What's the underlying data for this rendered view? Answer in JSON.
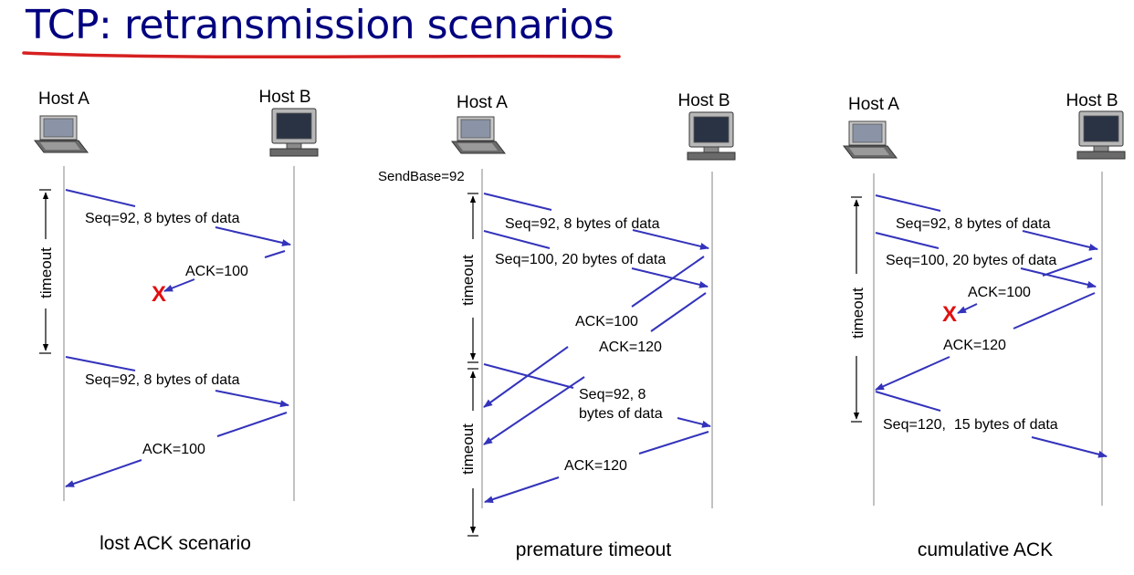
{
  "title": "TCP: retransmission scenarios",
  "colors": {
    "title": "#000080",
    "underline": "#d62020",
    "arrow": "#3333bb",
    "loss": "#e01010",
    "timeline": "#999999"
  },
  "scenarios": [
    {
      "caption": "lost ACK scenario",
      "host_a": "Host A",
      "host_b": "Host B",
      "timers": [
        "timeout"
      ],
      "messages": [
        "Seq=92, 8 bytes of data",
        "ACK=100",
        "Seq=92, 8 bytes of data",
        "ACK=100"
      ],
      "loss_marks": [
        "X"
      ]
    },
    {
      "caption": "premature timeout",
      "host_a": "Host A",
      "host_b": "Host B",
      "sendbase": "SendBase=92",
      "timers": [
        "timeout",
        "timeout"
      ],
      "messages": [
        "Seq=92, 8 bytes of data",
        "Seq=100, 20 bytes of data",
        "ACK=100",
        "ACK=120",
        "Seq=92,  8",
        "bytes of data",
        "ACK=120"
      ]
    },
    {
      "caption": "cumulative ACK",
      "host_a": "Host A",
      "host_b": "Host B",
      "timers": [
        "timeout"
      ],
      "messages": [
        "Seq=92, 8 bytes of data",
        "Seq=100, 20 bytes of data",
        "ACK=100",
        "ACK=120",
        "Seq=120,  15 bytes of data"
      ],
      "loss_marks": [
        "X"
      ]
    }
  ]
}
